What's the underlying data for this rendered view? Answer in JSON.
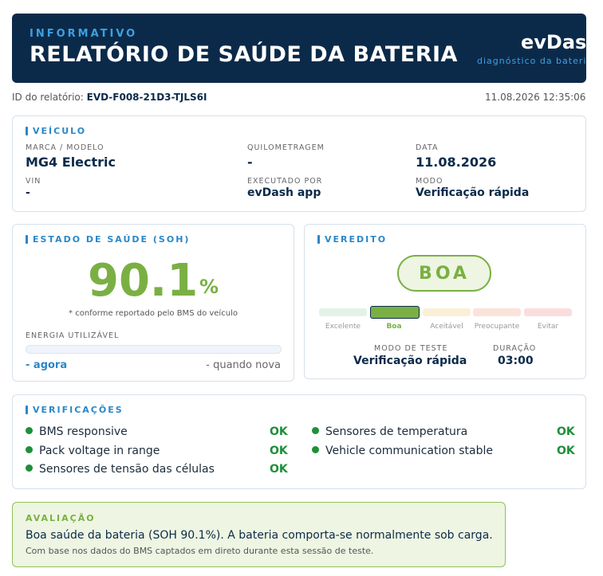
{
  "header": {
    "kicker": "INFORMATIVO",
    "title": "RELATÓRIO DE SAÚDE DA BATERIA",
    "brand": "evDash",
    "brand_sub": "diagnóstico da bateria"
  },
  "meta": {
    "report_id_label": "ID do relatório:",
    "report_id": "EVD-F008-21D3-TJLS6I",
    "datetime": "11.08.2026 12:35:06"
  },
  "vehicle": {
    "section": "VEÍCULO",
    "make_model_label": "MARCA / MODELO",
    "make_model": "MG4 Electric",
    "mileage_label": "QUILOMETRAGEM",
    "mileage": "-",
    "date_label": "DATA",
    "date": "11.08.2026",
    "vin_label": "VIN",
    "vin": "-",
    "executed_by_label": "EXECUTADO POR",
    "executed_by": "evDash app",
    "mode_label": "MODO",
    "mode": "Verificação rápida"
  },
  "soh": {
    "section": "ESTADO DE SAÚDE (SOH)",
    "value": "90.1",
    "unit": "%",
    "note": "* conforme reportado pelo BMS do veículo",
    "energy_label": "ENERGIA UTILIZÁVEL",
    "energy_now": "- agora",
    "energy_new": "- quando nova",
    "energy_fraction": 0
  },
  "verdict": {
    "section": "VEREDITO",
    "value": "BOA",
    "scale": [
      {
        "label": "Excelente",
        "color": "#e3f2e6",
        "active": false
      },
      {
        "label": "Boa",
        "color": "#7ab043",
        "active": true
      },
      {
        "label": "Aceitável",
        "color": "#fbf0d6",
        "active": false
      },
      {
        "label": "Preocupante",
        "color": "#fbe3da",
        "active": false
      },
      {
        "label": "Evitar",
        "color": "#fadede",
        "active": false
      }
    ],
    "test_mode_label": "MODO DE TESTE",
    "test_mode": "Verificação rápida",
    "duration_label": "DURAÇÃO",
    "duration": "03:00"
  },
  "checks": {
    "section": "VERIFICAÇÕES",
    "ok_label": "OK",
    "left": [
      "BMS responsive",
      "Pack voltage in range",
      "Sensores de tensão das células"
    ],
    "right": [
      "Sensores de temperatura",
      "Vehicle communication stable"
    ]
  },
  "assessment": {
    "section": "AVALIAÇÃO",
    "text": "Boa saúde da bateria (SOH 90.1%). A bateria comporta-se normalmente sob carga.",
    "subtext": "Com base nos dados do BMS captados em direto durante esta sessão de teste."
  },
  "colors": {
    "navy": "#0b2a4a",
    "accent": "#2a87c8",
    "good": "#7ab043",
    "ok": "#1e8f3a"
  }
}
